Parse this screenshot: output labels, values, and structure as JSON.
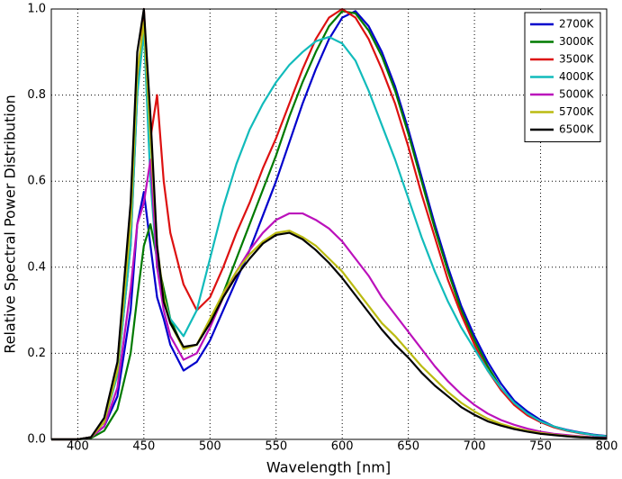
{
  "chart_data": {
    "type": "line",
    "xlabel": "Wavelength [nm]",
    "ylabel": "Relative Spectral Power Distribution",
    "x": [
      380,
      390,
      400,
      410,
      420,
      430,
      440,
      445,
      450,
      455,
      460,
      465,
      470,
      480,
      490,
      500,
      510,
      520,
      530,
      540,
      550,
      560,
      570,
      580,
      590,
      600,
      610,
      620,
      630,
      640,
      650,
      660,
      670,
      680,
      690,
      700,
      710,
      720,
      730,
      740,
      750,
      760,
      770,
      780,
      790,
      800
    ],
    "series": [
      {
        "name": "2700K",
        "color": "#0000cc",
        "values": [
          0,
          0,
          0,
          0.005,
          0.03,
          0.1,
          0.3,
          0.5,
          0.575,
          0.45,
          0.33,
          0.28,
          0.22,
          0.16,
          0.18,
          0.23,
          0.3,
          0.37,
          0.44,
          0.52,
          0.6,
          0.69,
          0.78,
          0.86,
          0.93,
          0.98,
          0.995,
          0.96,
          0.9,
          0.82,
          0.72,
          0.61,
          0.5,
          0.4,
          0.31,
          0.24,
          0.18,
          0.13,
          0.09,
          0.065,
          0.045,
          0.03,
          0.022,
          0.016,
          0.011,
          0.008
        ]
      },
      {
        "name": "3000K",
        "color": "#007a00",
        "values": [
          0,
          0,
          0,
          0.003,
          0.02,
          0.07,
          0.2,
          0.33,
          0.45,
          0.5,
          0.42,
          0.35,
          0.28,
          0.21,
          0.22,
          0.27,
          0.34,
          0.42,
          0.5,
          0.58,
          0.66,
          0.75,
          0.83,
          0.9,
          0.96,
          0.995,
          0.99,
          0.95,
          0.89,
          0.81,
          0.71,
          0.6,
          0.49,
          0.39,
          0.3,
          0.23,
          0.17,
          0.12,
          0.085,
          0.06,
          0.042,
          0.03,
          0.021,
          0.015,
          0.01,
          0.007
        ]
      },
      {
        "name": "3500K",
        "color": "#dd1111",
        "values": [
          0,
          0,
          0,
          0.005,
          0.04,
          0.15,
          0.45,
          0.8,
          1.0,
          0.7,
          0.8,
          0.6,
          0.48,
          0.36,
          0.3,
          0.33,
          0.4,
          0.48,
          0.55,
          0.63,
          0.7,
          0.78,
          0.86,
          0.93,
          0.98,
          1.0,
          0.98,
          0.93,
          0.86,
          0.78,
          0.68,
          0.57,
          0.47,
          0.37,
          0.29,
          0.22,
          0.16,
          0.115,
          0.08,
          0.056,
          0.04,
          0.028,
          0.02,
          0.014,
          0.01,
          0.007
        ]
      },
      {
        "name": "4000K",
        "color": "#11bbbb",
        "values": [
          0,
          0,
          0,
          0.005,
          0.04,
          0.15,
          0.45,
          0.8,
          0.95,
          0.6,
          0.4,
          0.33,
          0.28,
          0.24,
          0.3,
          0.42,
          0.54,
          0.64,
          0.72,
          0.78,
          0.83,
          0.87,
          0.9,
          0.925,
          0.935,
          0.92,
          0.88,
          0.81,
          0.73,
          0.65,
          0.56,
          0.47,
          0.39,
          0.32,
          0.26,
          0.21,
          0.16,
          0.12,
          0.085,
          0.06,
          0.042,
          0.03,
          0.021,
          0.015,
          0.01,
          0.007
        ]
      },
      {
        "name": "5000K",
        "color": "#bb11bb",
        "values": [
          0,
          0,
          0,
          0.005,
          0.03,
          0.12,
          0.35,
          0.5,
          0.55,
          0.65,
          0.4,
          0.3,
          0.24,
          0.185,
          0.2,
          0.26,
          0.33,
          0.39,
          0.44,
          0.48,
          0.51,
          0.525,
          0.525,
          0.51,
          0.49,
          0.46,
          0.42,
          0.38,
          0.33,
          0.29,
          0.25,
          0.21,
          0.17,
          0.135,
          0.105,
          0.08,
          0.06,
          0.045,
          0.034,
          0.025,
          0.018,
          0.013,
          0.01,
          0.007,
          0.005,
          0.004
        ]
      },
      {
        "name": "5700K",
        "color": "#bbbb11",
        "values": [
          0,
          0,
          0,
          0.005,
          0.04,
          0.16,
          0.5,
          0.85,
          0.97,
          0.7,
          0.45,
          0.33,
          0.27,
          0.21,
          0.22,
          0.28,
          0.34,
          0.39,
          0.43,
          0.46,
          0.48,
          0.485,
          0.47,
          0.45,
          0.42,
          0.39,
          0.35,
          0.31,
          0.27,
          0.24,
          0.205,
          0.17,
          0.14,
          0.11,
          0.085,
          0.065,
          0.048,
          0.036,
          0.027,
          0.02,
          0.015,
          0.011,
          0.008,
          0.006,
          0.004,
          0.003
        ]
      },
      {
        "name": "6500K",
        "color": "#000000",
        "values": [
          0,
          0,
          0,
          0.005,
          0.05,
          0.18,
          0.55,
          0.9,
          1.0,
          0.75,
          0.45,
          0.32,
          0.27,
          0.215,
          0.22,
          0.27,
          0.33,
          0.38,
          0.42,
          0.455,
          0.475,
          0.48,
          0.465,
          0.44,
          0.41,
          0.375,
          0.335,
          0.295,
          0.255,
          0.22,
          0.19,
          0.155,
          0.125,
          0.1,
          0.075,
          0.057,
          0.042,
          0.032,
          0.024,
          0.018,
          0.013,
          0.01,
          0.007,
          0.005,
          0.004,
          0.003
        ]
      }
    ],
    "xlim": [
      380,
      800
    ],
    "xticks": [
      400,
      450,
      500,
      550,
      600,
      650,
      700,
      750,
      800
    ],
    "ylim": [
      0,
      1
    ],
    "yticks": [
      {
        "value": 0,
        "label": "0.0"
      },
      0.2,
      0.4,
      0.6,
      0.8,
      {
        "value": 1,
        "label": "1.0"
      }
    ],
    "grid": true,
    "legend": "upper right"
  }
}
